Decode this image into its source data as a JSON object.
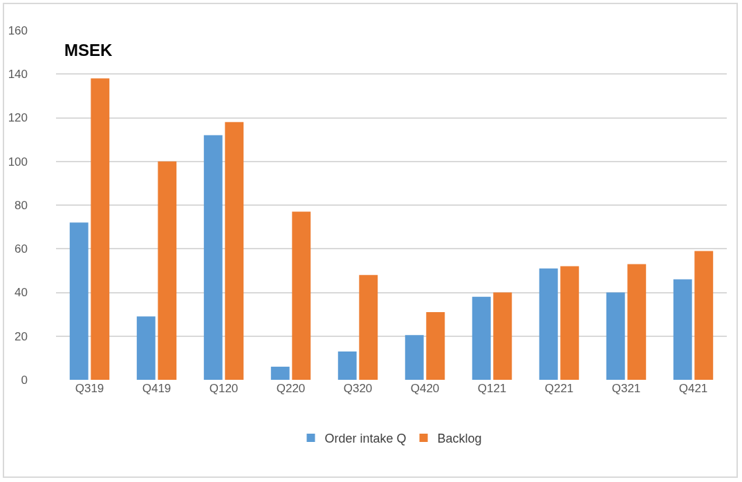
{
  "chart_data": {
    "type": "bar",
    "ylabel": "MSEK",
    "categories": [
      "Q319",
      "Q419",
      "Q120",
      "Q220",
      "Q320",
      "Q420",
      "Q121",
      "Q221",
      "Q321",
      "Q421"
    ],
    "series": [
      {
        "name": "Order intake Q",
        "color": "#5b9bd5",
        "values": [
          72,
          29,
          112,
          6,
          13,
          20.5,
          38,
          51,
          40,
          46
        ]
      },
      {
        "name": "Backlog",
        "color": "#ed7d31",
        "values": [
          138,
          100,
          118,
          77,
          48,
          31,
          40,
          52,
          53,
          59
        ]
      }
    ],
    "ylim": [
      0,
      160
    ],
    "yticks": [
      0,
      20,
      40,
      60,
      80,
      100,
      120,
      140,
      160
    ],
    "grid": "y",
    "legend": "bottom"
  }
}
